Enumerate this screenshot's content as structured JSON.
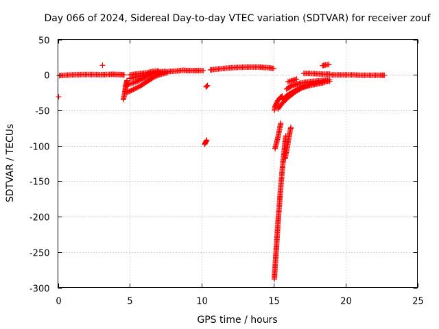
{
  "chart_data": {
    "type": "scatter",
    "title": "Day 066 of 2024, Sidereal Day-to-day VTEC variation (SDTVAR) for receiver zouf",
    "xlabel": "GPS time / hours",
    "ylabel": "SDTVAR / TECUs",
    "xlim": [
      0,
      25
    ],
    "ylim": [
      -300,
      50
    ],
    "xticks": [
      0,
      5,
      10,
      15,
      20,
      25
    ],
    "yticks": [
      50,
      0,
      -50,
      -100,
      -150,
      -200,
      -250,
      -300
    ],
    "grid": true,
    "marker": "+",
    "series_color": "#ff0000",
    "segments": [
      {
        "name": "early-outlier",
        "points": [
          [
            0.05,
            -31
          ]
        ]
      },
      {
        "name": "baseline-0-3",
        "points": [
          [
            0.1,
            -1
          ],
          [
            0.5,
            -0.5
          ],
          [
            1.0,
            0
          ],
          [
            1.5,
            0.3
          ],
          [
            2.0,
            0.5
          ],
          [
            2.5,
            0.4
          ],
          [
            3.0,
            0.2
          ],
          [
            3.4,
            0.5
          ]
        ]
      },
      {
        "name": "spike-3h",
        "points": [
          [
            3.1,
            13.5
          ]
        ]
      },
      {
        "name": "baseline-3.5-4.6",
        "points": [
          [
            3.5,
            0.5
          ],
          [
            3.8,
            0.8
          ],
          [
            4.1,
            0.5
          ],
          [
            4.4,
            0.3
          ],
          [
            4.6,
            0
          ]
        ]
      },
      {
        "name": "descent-4.7",
        "points": [
          [
            4.55,
            -35
          ],
          [
            4.6,
            -30
          ],
          [
            4.65,
            -25
          ],
          [
            4.7,
            -18
          ],
          [
            4.75,
            -12
          ],
          [
            4.8,
            -8
          ]
        ]
      },
      {
        "name": "rise-a",
        "points": [
          [
            4.8,
            -25
          ],
          [
            5.1,
            -22
          ],
          [
            5.4,
            -19
          ],
          [
            5.7,
            -16
          ],
          [
            6.0,
            -12
          ],
          [
            6.3,
            -8
          ],
          [
            6.6,
            -4
          ],
          [
            6.9,
            -1
          ],
          [
            7.2,
            1
          ],
          [
            7.6,
            3
          ]
        ]
      },
      {
        "name": "rise-b",
        "points": [
          [
            4.7,
            -15
          ],
          [
            5.0,
            -13
          ],
          [
            5.4,
            -10
          ],
          [
            5.8,
            -6
          ],
          [
            6.2,
            -2
          ],
          [
            6.6,
            1
          ],
          [
            7.0,
            3
          ],
          [
            7.4,
            4
          ]
        ]
      },
      {
        "name": "rise-c",
        "points": [
          [
            5.0,
            -5
          ],
          [
            5.4,
            -3
          ],
          [
            5.8,
            -1
          ],
          [
            6.2,
            1
          ],
          [
            6.6,
            3
          ],
          [
            7.0,
            4
          ],
          [
            7.4,
            5
          ]
        ]
      },
      {
        "name": "rise-d",
        "points": [
          [
            5.0,
            0
          ],
          [
            5.4,
            1
          ],
          [
            5.8,
            2
          ],
          [
            6.2,
            3
          ],
          [
            6.6,
            5
          ],
          [
            7.0,
            5.5
          ]
        ]
      },
      {
        "name": "plateau-7-10",
        "points": [
          [
            7.5,
            4.5
          ],
          [
            7.9,
            5
          ],
          [
            8.3,
            5.5
          ],
          [
            8.7,
            6.5
          ],
          [
            9.0,
            6
          ],
          [
            9.4,
            6
          ],
          [
            9.7,
            6
          ],
          [
            10.1,
            6
          ]
        ]
      },
      {
        "name": "small-dip-10.4",
        "points": [
          [
            10.3,
            -17
          ],
          [
            10.4,
            -15
          ]
        ]
      },
      {
        "name": "dip-10.2",
        "points": [
          [
            10.2,
            -98
          ],
          [
            10.25,
            -96
          ],
          [
            10.3,
            -94
          ],
          [
            10.35,
            -92
          ]
        ]
      },
      {
        "name": "plateau-10.6-15",
        "points": [
          [
            10.6,
            7
          ],
          [
            11.0,
            8
          ],
          [
            11.5,
            9
          ],
          [
            12.0,
            10
          ],
          [
            12.5,
            10.5
          ],
          [
            13.0,
            10.8
          ],
          [
            13.5,
            11
          ],
          [
            14.0,
            11
          ],
          [
            14.3,
            10.5
          ],
          [
            14.7,
            10
          ],
          [
            15.0,
            9
          ]
        ]
      },
      {
        "name": "drop-a",
        "points": [
          [
            15.05,
            -50
          ],
          [
            15.1,
            -45
          ],
          [
            15.2,
            -40
          ],
          [
            15.3,
            -36
          ],
          [
            15.45,
            -32
          ],
          [
            15.6,
            -30
          ]
        ]
      },
      {
        "name": "drop-b",
        "points": [
          [
            15.1,
            -104
          ],
          [
            15.2,
            -96
          ],
          [
            15.3,
            -88
          ],
          [
            15.4,
            -78
          ],
          [
            15.5,
            -68
          ]
        ]
      },
      {
        "name": "spike-deep",
        "points": [
          [
            15.05,
            -288
          ],
          [
            15.1,
            -272
          ],
          [
            15.15,
            -256
          ],
          [
            15.2,
            -242
          ],
          [
            15.25,
            -226
          ],
          [
            15.3,
            -210
          ],
          [
            15.35,
            -196
          ],
          [
            15.4,
            -184
          ],
          [
            15.45,
            -170
          ],
          [
            15.5,
            -158
          ],
          [
            15.55,
            -146
          ],
          [
            15.6,
            -134
          ],
          [
            15.65,
            -124
          ],
          [
            15.7,
            -114
          ],
          [
            15.75,
            -104
          ],
          [
            15.8,
            -94
          ],
          [
            15.85,
            -86
          ]
        ]
      },
      {
        "name": "drop-c",
        "points": [
          [
            15.8,
            -118
          ],
          [
            15.9,
            -108
          ],
          [
            16.0,
            -96
          ],
          [
            16.1,
            -84
          ],
          [
            16.2,
            -74
          ]
        ]
      },
      {
        "name": "recovery-a",
        "points": [
          [
            15.3,
            -48
          ],
          [
            15.6,
            -40
          ],
          [
            16.0,
            -32
          ],
          [
            16.5,
            -24
          ],
          [
            17.0,
            -18
          ],
          [
            17.5,
            -15
          ],
          [
            18.0,
            -13
          ],
          [
            18.5,
            -11
          ]
        ]
      },
      {
        "name": "recovery-b",
        "points": [
          [
            15.6,
            -35
          ],
          [
            16.0,
            -28
          ],
          [
            16.5,
            -22
          ],
          [
            17.0,
            -17
          ],
          [
            17.5,
            -14
          ],
          [
            18.0,
            -12
          ],
          [
            18.5,
            -10
          ],
          [
            18.9,
            -9
          ]
        ]
      },
      {
        "name": "recovery-c",
        "points": [
          [
            15.9,
            -20
          ],
          [
            16.3,
            -15
          ],
          [
            16.8,
            -12
          ],
          [
            17.3,
            -10
          ],
          [
            17.8,
            -9
          ],
          [
            18.3,
            -8
          ],
          [
            18.9,
            -7
          ]
        ]
      },
      {
        "name": "recovery-d",
        "points": [
          [
            16.0,
            -10
          ],
          [
            16.3,
            -8
          ],
          [
            16.6,
            -6
          ]
        ]
      },
      {
        "name": "upper-group",
        "points": [
          [
            17.1,
            2
          ],
          [
            17.5,
            2
          ],
          [
            18.0,
            1.5
          ],
          [
            18.5,
            1
          ],
          [
            18.9,
            1
          ]
        ]
      },
      {
        "name": "spike-18.5",
        "points": [
          [
            18.4,
            13
          ],
          [
            18.6,
            14
          ],
          [
            18.85,
            14.5
          ]
        ]
      },
      {
        "name": "tail-19-22.7",
        "points": [
          [
            19.0,
            0
          ],
          [
            19.5,
            0
          ],
          [
            20.0,
            0
          ],
          [
            20.5,
            0
          ],
          [
            21.0,
            -0.5
          ],
          [
            21.5,
            -0.5
          ],
          [
            22.0,
            -0.5
          ],
          [
            22.5,
            -0.5
          ],
          [
            22.7,
            -0.5
          ]
        ]
      }
    ]
  }
}
